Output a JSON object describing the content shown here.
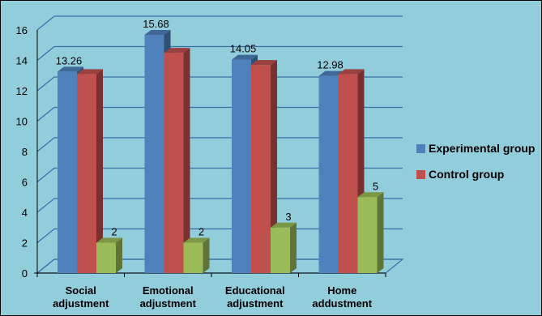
{
  "chart_data": {
    "type": "bar",
    "title": "",
    "xlabel": "",
    "ylabel": "",
    "categories": [
      [
        "Social",
        "adjustment"
      ],
      [
        "Emotional",
        "adjustment"
      ],
      [
        "Educational",
        "adjustment"
      ],
      [
        "Home",
        "addustment"
      ]
    ],
    "series": [
      {
        "name": "Experimental group",
        "color": "#4f81bd",
        "values": [
          13.26,
          15.68,
          14.05,
          12.98
        ],
        "labels": [
          "13.26",
          "15.68",
          "14.05",
          "12.98"
        ]
      },
      {
        "name": "Control group",
        "color": "#c0504d",
        "values": [
          13.1,
          14.5,
          13.7,
          13.1
        ],
        "labels": [
          "",
          "",
          "",
          ""
        ]
      },
      {
        "color": "#9bbb59",
        "values": [
          2,
          2,
          3,
          5
        ],
        "labels": [
          "2",
          "2",
          "3",
          "5"
        ]
      }
    ],
    "ylim": [
      0,
      16
    ],
    "yticks": [
      "0",
      "2",
      "4",
      "6",
      "8",
      "10",
      "12",
      "14",
      "16"
    ],
    "grid": true,
    "legend_position": "right",
    "background": "#92cddc"
  }
}
